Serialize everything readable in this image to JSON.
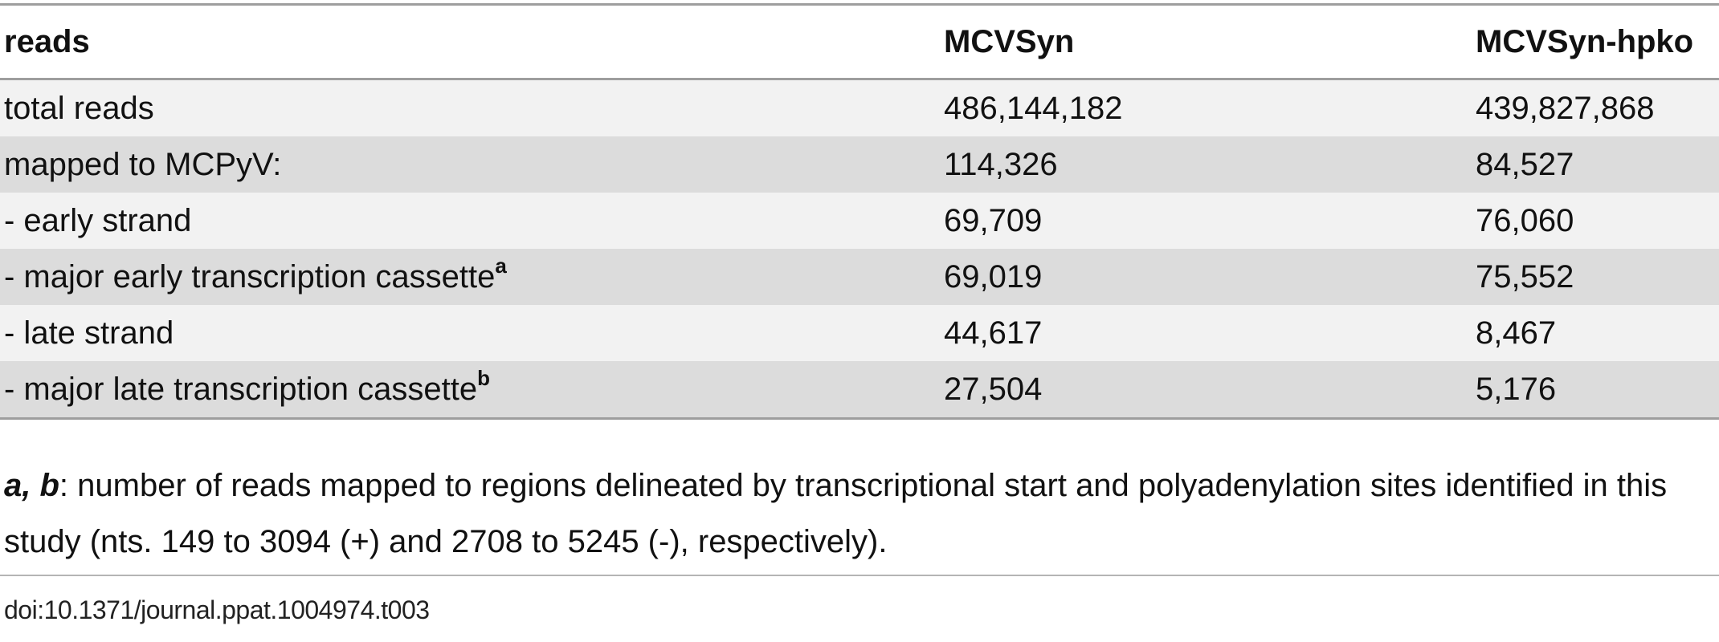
{
  "table": {
    "headers": [
      "reads",
      "MCVSyn",
      "MCVSyn-hpko"
    ],
    "rows": [
      {
        "label": "total reads",
        "sup": "",
        "mcvsyn": "486,144,182",
        "hpko": "439,827,868"
      },
      {
        "label": "mapped to MCPyV:",
        "sup": "",
        "mcvsyn": "114,326",
        "hpko": "84,527"
      },
      {
        "label": "- early strand",
        "sup": "",
        "mcvsyn": "69,709",
        "hpko": "76,060"
      },
      {
        "label": "- major early transcription cassette",
        "sup": "a",
        "mcvsyn": "69,019",
        "hpko": "75,552"
      },
      {
        "label": "- late strand",
        "sup": "",
        "mcvsyn": "44,617",
        "hpko": "8,467"
      },
      {
        "label": "- major late transcription cassette",
        "sup": "b",
        "mcvsyn": "27,504",
        "hpko": "5,176"
      }
    ]
  },
  "footnote": {
    "keys": "a, b",
    "text": ": number of reads mapped to regions delineated by transcriptional start and polyadenylation sites identified in this study (nts. 149 to 3094 (+) and 2708 to 5245 (-), respectively)."
  },
  "doi": "doi:10.1371/journal.ppat.1004974.t003"
}
